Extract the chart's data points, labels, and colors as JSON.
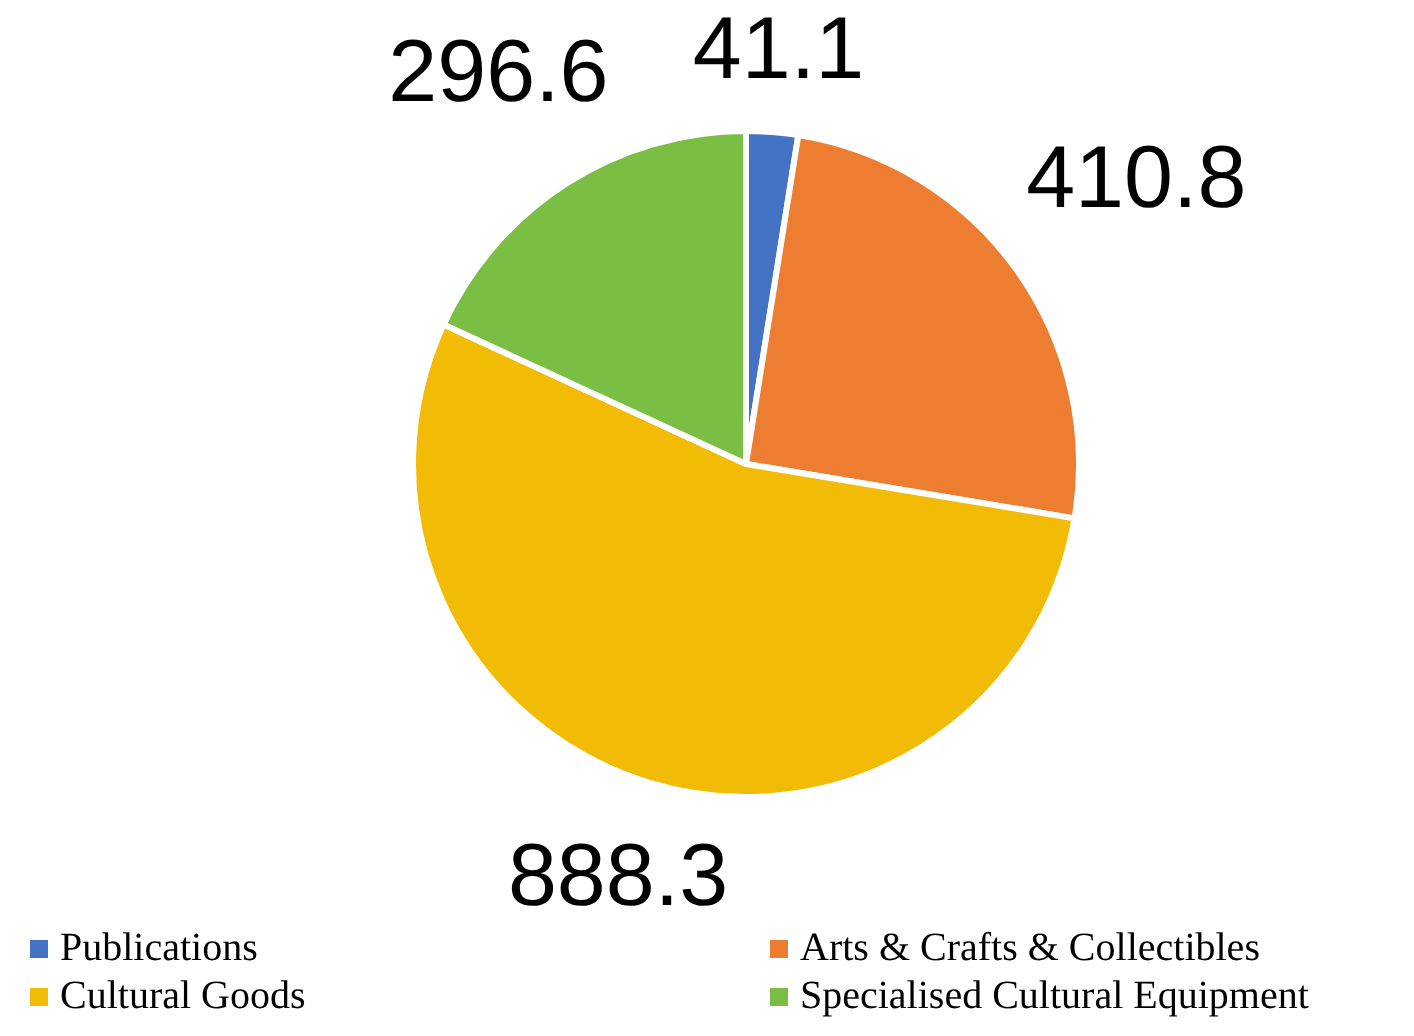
{
  "chart_data": {
    "type": "pie",
    "categories": [
      "Publications",
      "Arts & Crafts & Collectibles",
      "Cultural Goods",
      "Specialised Cultural Equipment"
    ],
    "values": [
      41.1,
      410.8,
      888.3,
      296.6
    ],
    "colors": [
      "#4472c4",
      "#ed7d31",
      "#f2bb05",
      "#7abf43"
    ],
    "data_labels": true,
    "legend": "bottom"
  }
}
